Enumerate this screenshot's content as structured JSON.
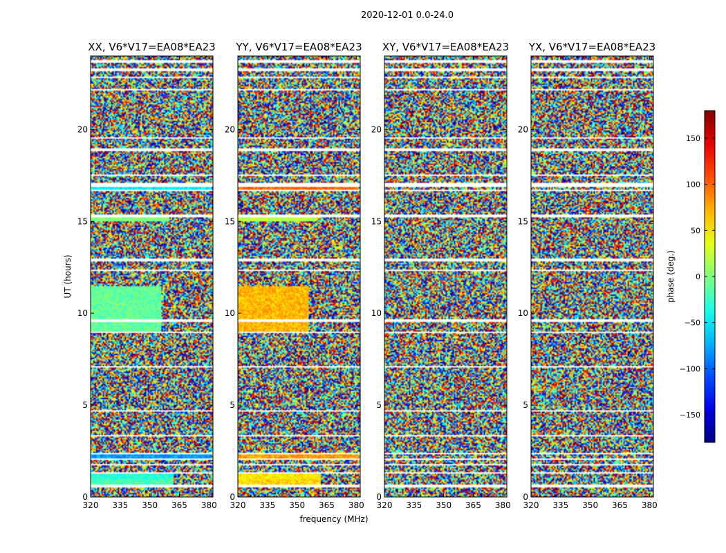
{
  "figure_title": "2020-12-01 0.0-24.0",
  "chart_data": {
    "type": "heatmap",
    "xlabel": "frequency (MHz)",
    "ylabel": "UT (hours)",
    "xlim": [
      320,
      382
    ],
    "ylim": [
      0,
      24
    ],
    "xticks": [
      320,
      335,
      350,
      365,
      380
    ],
    "yticks": [
      0,
      5,
      10,
      15,
      20
    ],
    "colorbar": {
      "label": "phase (deg.)",
      "range": [
        -180,
        180
      ],
      "ticks": [
        -150,
        -100,
        -50,
        0,
        50,
        100,
        150
      ],
      "colormap": "jet",
      "tick_labels": [
        "−150",
        "−100",
        "−50",
        "0",
        "50",
        "100",
        "150"
      ]
    },
    "panels": [
      {
        "title": "XX, V6*V17=EA08*EA23",
        "polarization": "XX"
      },
      {
        "title": "YY, V6*V17=EA08*EA23",
        "polarization": "YY"
      },
      {
        "title": "XY, V6*V17=EA08*EA23",
        "polarization": "XY"
      },
      {
        "title": "YX, V6*V17=EA08*EA23",
        "polarization": "YX"
      }
    ],
    "flagged_ut_bands": [
      [
        0.55,
        0.65
      ],
      [
        0.95,
        1.0
      ],
      [
        1.3,
        1.35
      ],
      [
        1.75,
        1.8
      ],
      [
        2.05,
        2.1
      ],
      [
        2.35,
        2.42
      ],
      [
        3.05,
        3.1
      ],
      [
        3.3,
        3.35
      ],
      [
        4.65,
        4.75
      ],
      [
        5.9,
        5.95
      ],
      [
        7.05,
        7.15
      ],
      [
        8.9,
        9.0
      ],
      [
        9.55,
        9.65
      ],
      [
        12.3,
        12.35
      ],
      [
        12.85,
        12.95
      ],
      [
        13.7,
        13.75
      ],
      [
        15.25,
        15.35
      ],
      [
        16.65,
        16.75
      ],
      [
        16.9,
        17.1
      ],
      [
        17.5,
        17.55
      ],
      [
        18.2,
        18.25
      ],
      [
        18.85,
        18.95
      ],
      [
        19.5,
        19.55
      ],
      [
        22.15,
        22.2
      ],
      [
        22.8,
        22.85
      ],
      [
        23.2,
        23.3
      ],
      [
        23.65,
        23.75
      ]
    ],
    "coherent_segments": [
      {
        "ut": [
          0.65,
          0.95
        ],
        "freq": [
          320,
          362
        ],
        "phase": {
          "XX": -20,
          "YY": 60
        }
      },
      {
        "ut": [
          1.0,
          1.3
        ],
        "freq": [
          320,
          362
        ],
        "phase": {
          "XX": -30,
          "YY": 50
        }
      },
      {
        "ut": [
          2.1,
          2.35
        ],
        "freq": [
          320,
          381
        ],
        "phase": {
          "XX": -80,
          "YY": 80
        }
      },
      {
        "ut": [
          9.0,
          11.5
        ],
        "freq": [
          320,
          356
        ],
        "phase": {
          "XX": -10,
          "YY": 70
        }
      },
      {
        "ut": [
          16.75,
          16.9
        ],
        "freq": [
          320,
          381
        ],
        "phase": {
          "XX": -50,
          "YY": 100
        }
      },
      {
        "ut": [
          15.0,
          15.25
        ],
        "freq": [
          320,
          360
        ],
        "phase": {
          "XX": 0,
          "YY": 20
        }
      }
    ]
  }
}
